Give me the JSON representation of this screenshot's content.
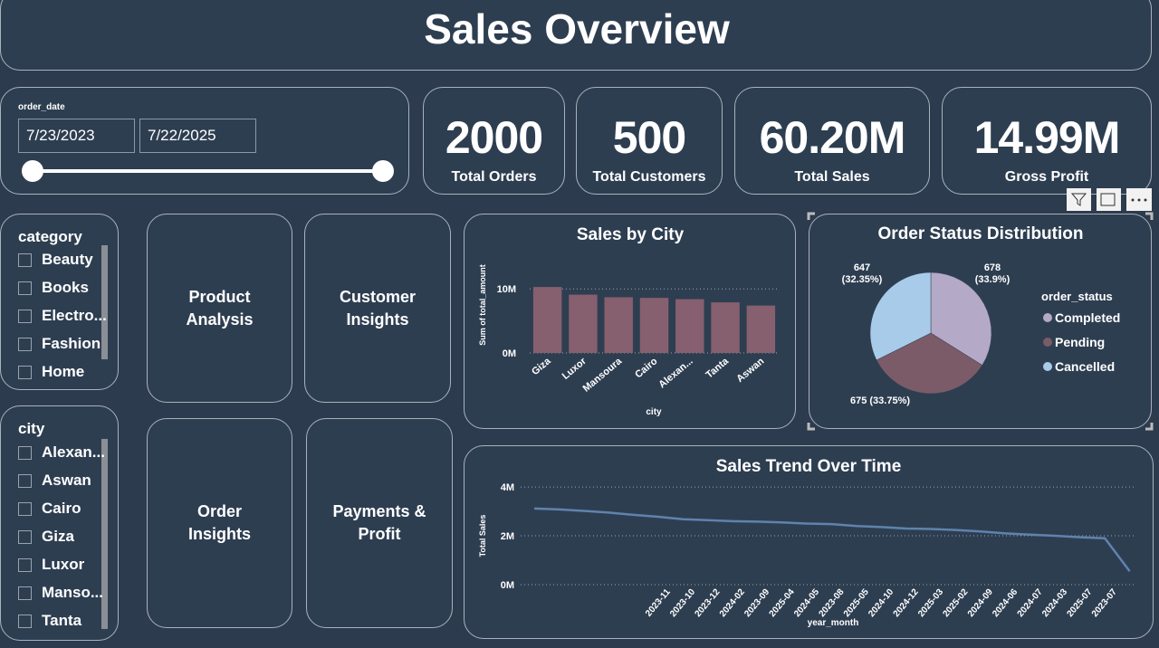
{
  "header": {
    "title": "Sales Overview"
  },
  "date_filter": {
    "label": "order_date",
    "start": "7/23/2023",
    "end": "7/22/2025"
  },
  "kpis": [
    {
      "value": "2000",
      "label": "Total Orders"
    },
    {
      "value": "500",
      "label": "Total Customers"
    },
    {
      "value": "60.20M",
      "label": "Total Sales"
    },
    {
      "value": "14.99M",
      "label": "Gross Profit"
    }
  ],
  "category_filter": {
    "title": "category",
    "items": [
      "Beauty",
      "Books",
      "Electro...",
      "Fashion",
      "Home"
    ]
  },
  "city_filter": {
    "title": "city",
    "items": [
      "Alexan...",
      "Aswan",
      "Cairo",
      "Giza",
      "Luxor",
      "Manso...",
      "Tanta"
    ]
  },
  "nav_buttons": [
    "Product Analysis",
    "Customer Insights",
    "Order Insights",
    "Payments & Profit"
  ],
  "chart_data": [
    {
      "type": "bar",
      "title": "Sales by City",
      "x_label": "city",
      "y_label": "Sum of total_amount",
      "categories": [
        "Giza",
        "Luxor",
        "Mansoura",
        "Cairo",
        "Alexan...",
        "Tanta",
        "Aswan"
      ],
      "values": [
        10300000,
        9100000,
        8700000,
        8600000,
        8400000,
        7900000,
        7400000
      ],
      "color": "#86606f",
      "ylim": [
        0,
        13000000
      ],
      "yticks": [
        {
          "value": 0,
          "label": "0M"
        },
        {
          "value": 10000000,
          "label": "10M"
        }
      ],
      "grid": true
    },
    {
      "type": "pie",
      "title": "Order Status Distribution",
      "legend_title": "order_status",
      "categories": [
        "Completed",
        "Pending",
        "Cancelled"
      ],
      "values": [
        678,
        675,
        647
      ],
      "value_labels": [
        "678 (33.9%)",
        "675 (33.75%)",
        "647 (32.35%)"
      ],
      "colors": [
        "#b4a9c6",
        "#7b5b68",
        "#a9cbea"
      ],
      "legend": "right"
    },
    {
      "type": "line",
      "title": "Sales Trend Over Time",
      "x_label": "year_month",
      "y_label": "Total Sales",
      "categories": [
        null,
        null,
        null,
        null,
        null,
        null,
        "2023-11",
        "2023-10",
        "2023-12",
        "2024-02",
        "2023-09",
        "2025-04",
        "2024-05",
        "2023-08",
        "2025-05",
        "2024-10",
        "2024-12",
        "2025-03",
        "2025-02",
        "2024-09",
        "2024-06",
        "2024-07",
        "2024-03",
        "2025-07",
        "2023-07"
      ],
      "values": [
        3120000,
        3080000,
        3020000,
        2950000,
        2860000,
        2780000,
        2680000,
        2640000,
        2600000,
        2580000,
        2550000,
        2500000,
        2480000,
        2400000,
        2360000,
        2300000,
        2280000,
        2240000,
        2180000,
        2100000,
        2050000,
        2000000,
        1940000,
        1900000,
        550000
      ],
      "color": "#5f83ad",
      "ylim": [
        0,
        4300000
      ],
      "yticks": [
        {
          "value": 0,
          "label": "0M"
        },
        {
          "value": 2000000,
          "label": "2M"
        },
        {
          "value": 4000000,
          "label": "4M"
        }
      ],
      "grid": true
    }
  ]
}
